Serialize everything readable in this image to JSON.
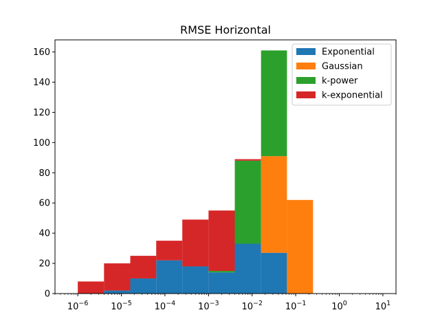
{
  "chart_data": {
    "type": "bar",
    "title": "RMSE Horizontal",
    "xlabel": "",
    "ylabel": "",
    "xscale": "log",
    "xlim": [
      3e-07,
      20
    ],
    "ylim": [
      0,
      168
    ],
    "stacked": true,
    "grid": false,
    "legend_position": "top-right",
    "bin_edges": [
      1e-06,
      4e-06,
      1.6e-05,
      6.3e-05,
      0.00025,
      0.001,
      0.004,
      0.016,
      0.063,
      0.25,
      1,
      4,
      10
    ],
    "series": [
      {
        "name": "Exponential",
        "color": "#1f77b4",
        "values": [
          0,
          2,
          10,
          22,
          18,
          14,
          33,
          27,
          0,
          0,
          0,
          0
        ]
      },
      {
        "name": "Gaussian",
        "color": "#ff7f0e",
        "values": [
          0,
          0,
          0,
          0,
          0,
          0,
          0,
          64,
          62,
          0,
          0,
          0
        ]
      },
      {
        "name": "k-power",
        "color": "#2ca02c",
        "values": [
          0,
          0,
          0,
          0,
          0,
          1,
          55,
          70,
          0,
          0,
          0,
          0
        ]
      },
      {
        "name": "k-exponential",
        "color": "#d62728",
        "values": [
          8,
          18,
          15,
          13,
          31,
          40,
          1,
          0,
          0,
          0,
          0,
          0
        ]
      }
    ],
    "y_ticks": [
      0,
      20,
      40,
      60,
      80,
      100,
      120,
      140,
      160
    ],
    "x_ticks": [
      {
        "value": 1e-06,
        "base": "10",
        "exp": "−6"
      },
      {
        "value": 1e-05,
        "base": "10",
        "exp": "−5"
      },
      {
        "value": 0.0001,
        "base": "10",
        "exp": "−4"
      },
      {
        "value": 0.001,
        "base": "10",
        "exp": "−3"
      },
      {
        "value": 0.01,
        "base": "10",
        "exp": "−2"
      },
      {
        "value": 0.1,
        "base": "10",
        "exp": "−1"
      },
      {
        "value": 1,
        "base": "10",
        "exp": "0"
      },
      {
        "value": 10,
        "base": "10",
        "exp": "1"
      }
    ]
  }
}
